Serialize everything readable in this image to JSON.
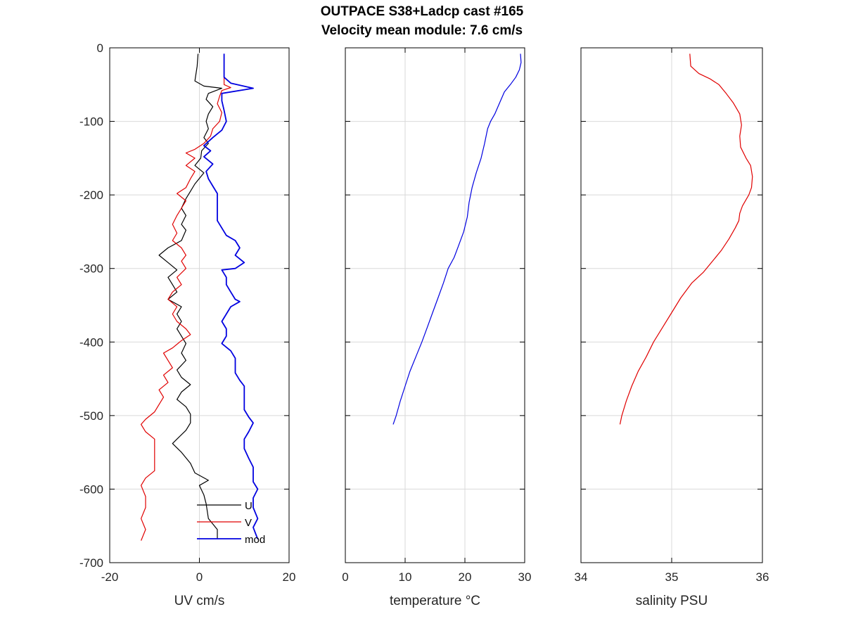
{
  "title": {
    "line1": "OUTPACE S38+Ladcp cast #165",
    "line2": "Velocity mean module:  7.6 cm/s"
  },
  "colors": {
    "u": "#000000",
    "v": "#e00000",
    "mod": "#0000e0",
    "temperature": "#0000e0",
    "salinity": "#e00000",
    "grid": "#d9d9d9"
  },
  "chart_data": [
    {
      "type": "line",
      "xlabel": "UV cm/s",
      "ylabel": "",
      "xlim": [
        -20,
        20
      ],
      "ylim": [
        -700,
        0
      ],
      "xticks": [
        -20,
        0,
        20
      ],
      "xtick_labels": [
        "-20",
        "0",
        "20"
      ],
      "yticks": [
        0,
        -100,
        -200,
        -300,
        -400,
        -500,
        -600,
        -700
      ],
      "ytick_labels": [
        "0",
        "-100",
        "-200",
        "-300",
        "-400",
        "-500",
        "-600",
        "-700"
      ],
      "grid": true,
      "legend": {
        "placement": "bottom-right",
        "entries": [
          "U",
          "V",
          "mod"
        ]
      },
      "series": [
        {
          "name": "U",
          "color_key": "u",
          "width": 1.2,
          "points": [
            [
              -0.3,
              -8
            ],
            [
              -0.5,
              -25
            ],
            [
              -1,
              -45
            ],
            [
              1,
              -52
            ],
            [
              5,
              -55
            ],
            [
              2,
              -62
            ],
            [
              1.5,
              -70
            ],
            [
              3,
              -80
            ],
            [
              2,
              -90
            ],
            [
              1.5,
              -100
            ],
            [
              2,
              -110
            ],
            [
              1,
              -122
            ],
            [
              2,
              -130
            ],
            [
              0.5,
              -140
            ],
            [
              0.3,
              -150
            ],
            [
              -1,
              -160
            ],
            [
              1,
              -170
            ],
            [
              -1,
              -185
            ],
            [
              -2,
              -195
            ],
            [
              -3,
              -205
            ],
            [
              -4,
              -218
            ],
            [
              -3,
              -228
            ],
            [
              -4,
              -240
            ],
            [
              -3,
              -248
            ],
            [
              -4,
              -262
            ],
            [
              -7,
              -272
            ],
            [
              -9,
              -282
            ],
            [
              -7,
              -292
            ],
            [
              -5,
              -302
            ],
            [
              -7,
              -312
            ],
            [
              -6,
              -322
            ],
            [
              -5,
              -332
            ],
            [
              -7,
              -342
            ],
            [
              -4,
              -352
            ],
            [
              -5,
              -362
            ],
            [
              -4,
              -372
            ],
            [
              -5,
              -382
            ],
            [
              -4,
              -392
            ],
            [
              -3,
              -402
            ],
            [
              -4,
              -415
            ],
            [
              -3,
              -425
            ],
            [
              -5,
              -438
            ],
            [
              -4,
              -448
            ],
            [
              -2,
              -458
            ],
            [
              -4,
              -468
            ],
            [
              -5,
              -478
            ],
            [
              -3,
              -488
            ],
            [
              -2,
              -498
            ],
            [
              -2,
              -510
            ],
            [
              -3,
              -520
            ],
            [
              -5,
              -532
            ],
            [
              -6,
              -538
            ],
            [
              -4,
              -550
            ],
            [
              -2,
              -565
            ],
            [
              -1,
              -578
            ],
            [
              2,
              -588
            ],
            [
              0,
              -595
            ],
            [
              1,
              -608
            ],
            [
              1.5,
              -620
            ],
            [
              2,
              -640
            ],
            [
              4,
              -655
            ],
            [
              4,
              -668
            ]
          ]
        },
        {
          "name": "V",
          "color_key": "v",
          "width": 1.2,
          "points": [
            [
              5.5,
              -35
            ],
            [
              5.5,
              -50
            ],
            [
              7,
              -54
            ],
            [
              5,
              -58
            ],
            [
              4.5,
              -66
            ],
            [
              4,
              -76
            ],
            [
              5,
              -88
            ],
            [
              4.5,
              -100
            ],
            [
              3,
              -110
            ],
            [
              2.5,
              -120
            ],
            [
              1,
              -130
            ],
            [
              -1,
              -138
            ],
            [
              -3,
              -143
            ],
            [
              -1,
              -150
            ],
            [
              -3,
              -160
            ],
            [
              -1,
              -168
            ],
            [
              -2,
              -178
            ],
            [
              -3,
              -190
            ],
            [
              -5,
              -198
            ],
            [
              -3,
              -208
            ],
            [
              -4,
              -218
            ],
            [
              -5,
              -228
            ],
            [
              -6,
              -240
            ],
            [
              -5,
              -252
            ],
            [
              -6,
              -262
            ],
            [
              -4,
              -272
            ],
            [
              -3,
              -282
            ],
            [
              -4,
              -290
            ],
            [
              -3,
              -300
            ],
            [
              -5,
              -312
            ],
            [
              -4,
              -322
            ],
            [
              -6,
              -332
            ],
            [
              -7,
              -342
            ],
            [
              -5,
              -352
            ],
            [
              -6,
              -362
            ],
            [
              -5,
              -372
            ],
            [
              -3,
              -382
            ],
            [
              -2,
              -390
            ],
            [
              -4,
              -398
            ],
            [
              -6,
              -408
            ],
            [
              -8,
              -415
            ],
            [
              -7,
              -425
            ],
            [
              -6,
              -435
            ],
            [
              -8,
              -445
            ],
            [
              -7,
              -455
            ],
            [
              -9,
              -465
            ],
            [
              -8,
              -475
            ],
            [
              -9,
              -485
            ],
            [
              -10,
              -495
            ],
            [
              -12,
              -505
            ],
            [
              -13,
              -512
            ],
            [
              -12,
              -522
            ],
            [
              -10,
              -532
            ],
            [
              -10,
              -545
            ],
            [
              -10,
              -560
            ],
            [
              -10,
              -575
            ],
            [
              -12,
              -585
            ],
            [
              -13,
              -595
            ],
            [
              -12,
              -610
            ],
            [
              -12,
              -625
            ],
            [
              -13,
              -640
            ],
            [
              -12,
              -655
            ],
            [
              -13,
              -670
            ]
          ]
        },
        {
          "name": "mod",
          "color_key": "mod",
          "width": 1.8,
          "points": [
            [
              5.5,
              -8
            ],
            [
              5.5,
              -40
            ],
            [
              7,
              -48
            ],
            [
              12,
              -55
            ],
            [
              5,
              -62
            ],
            [
              5,
              -72
            ],
            [
              5.5,
              -85
            ],
            [
              6,
              -100
            ],
            [
              5,
              -112
            ],
            [
              3,
              -122
            ],
            [
              1,
              -133
            ],
            [
              2.5,
              -140
            ],
            [
              1,
              -148
            ],
            [
              3,
              -158
            ],
            [
              1.5,
              -168
            ],
            [
              2,
              -178
            ],
            [
              3,
              -188
            ],
            [
              4,
              -198
            ],
            [
              4,
              -210
            ],
            [
              4,
              -222
            ],
            [
              4,
              -235
            ],
            [
              5,
              -245
            ],
            [
              6,
              -255
            ],
            [
              8,
              -262
            ],
            [
              9,
              -272
            ],
            [
              8,
              -282
            ],
            [
              10,
              -292
            ],
            [
              8,
              -300
            ],
            [
              5,
              -302
            ],
            [
              6,
              -312
            ],
            [
              6,
              -322
            ],
            [
              7,
              -332
            ],
            [
              8,
              -342
            ],
            [
              9,
              -345
            ],
            [
              7,
              -352
            ],
            [
              6,
              -362
            ],
            [
              5,
              -372
            ],
            [
              6,
              -382
            ],
            [
              6,
              -392
            ],
            [
              5,
              -402
            ],
            [
              7,
              -412
            ],
            [
              8,
              -422
            ],
            [
              8,
              -432
            ],
            [
              8,
              -442
            ],
            [
              9,
              -452
            ],
            [
              10,
              -460
            ],
            [
              10,
              -470
            ],
            [
              10,
              -480
            ],
            [
              10,
              -492
            ],
            [
              11,
              -502
            ],
            [
              12,
              -510
            ],
            [
              11,
              -522
            ],
            [
              10,
              -532
            ],
            [
              10,
              -545
            ],
            [
              11,
              -558
            ],
            [
              12,
              -570
            ],
            [
              12,
              -580
            ],
            [
              12,
              -590
            ],
            [
              13,
              -600
            ],
            [
              12,
              -612
            ],
            [
              12,
              -625
            ],
            [
              13,
              -640
            ],
            [
              12,
              -652
            ],
            [
              13,
              -668
            ]
          ]
        }
      ]
    },
    {
      "type": "line",
      "xlabel": "temperature °C",
      "ylabel": "",
      "xlim": [
        0,
        30
      ],
      "ylim": [
        -700,
        0
      ],
      "xticks": [
        0,
        10,
        20,
        30
      ],
      "xtick_labels": [
        "0",
        "10",
        "20",
        "30"
      ],
      "yticks": [
        0,
        -100,
        -200,
        -300,
        -400,
        -500,
        -600,
        -700
      ],
      "grid": true,
      "series": [
        {
          "color_key": "temperature",
          "width": 1.2,
          "points": [
            [
              29.3,
              -8
            ],
            [
              29.4,
              -20
            ],
            [
              29.1,
              -30
            ],
            [
              28.5,
              -40
            ],
            [
              27.6,
              -50
            ],
            [
              26.6,
              -60
            ],
            [
              25.8,
              -75
            ],
            [
              25,
              -90
            ],
            [
              24.3,
              -100
            ],
            [
              23.8,
              -110
            ],
            [
              23.3,
              -130
            ],
            [
              22.7,
              -150
            ],
            [
              21.9,
              -170
            ],
            [
              21.2,
              -190
            ],
            [
              20.7,
              -210
            ],
            [
              20.4,
              -230
            ],
            [
              19.8,
              -250
            ],
            [
              18.9,
              -270
            ],
            [
              18.2,
              -285
            ],
            [
              17.2,
              -300
            ],
            [
              16.4,
              -320
            ],
            [
              15.5,
              -340
            ],
            [
              14.6,
              -360
            ],
            [
              13.7,
              -380
            ],
            [
              12.8,
              -400
            ],
            [
              11.8,
              -420
            ],
            [
              10.8,
              -440
            ],
            [
              10.0,
              -460
            ],
            [
              9.2,
              -480
            ],
            [
              8.5,
              -500
            ],
            [
              8.0,
              -512
            ]
          ]
        }
      ]
    },
    {
      "type": "line",
      "xlabel": "salinity PSU",
      "ylabel": "",
      "xlim": [
        34,
        36
      ],
      "ylim": [
        -700,
        0
      ],
      "xticks": [
        34,
        35,
        36
      ],
      "xtick_labels": [
        "34",
        "35",
        "36"
      ],
      "yticks": [
        0,
        -100,
        -200,
        -300,
        -400,
        -500,
        -600,
        -700
      ],
      "grid": true,
      "series": [
        {
          "color_key": "salinity",
          "width": 1.2,
          "points": [
            [
              35.2,
              -8
            ],
            [
              35.21,
              -25
            ],
            [
              35.3,
              -35
            ],
            [
              35.42,
              -42
            ],
            [
              35.52,
              -50
            ],
            [
              35.6,
              -62
            ],
            [
              35.68,
              -75
            ],
            [
              35.75,
              -90
            ],
            [
              35.77,
              -105
            ],
            [
              35.75,
              -120
            ],
            [
              35.76,
              -135
            ],
            [
              35.82,
              -150
            ],
            [
              35.87,
              -160
            ],
            [
              35.89,
              -175
            ],
            [
              35.88,
              -190
            ],
            [
              35.85,
              -200
            ],
            [
              35.78,
              -215
            ],
            [
              35.75,
              -225
            ],
            [
              35.74,
              -235
            ],
            [
              35.7,
              -245
            ],
            [
              35.63,
              -260
            ],
            [
              35.55,
              -275
            ],
            [
              35.45,
              -290
            ],
            [
              35.35,
              -305
            ],
            [
              35.22,
              -320
            ],
            [
              35.1,
              -340
            ],
            [
              35.0,
              -360
            ],
            [
              34.9,
              -380
            ],
            [
              34.8,
              -400
            ],
            [
              34.72,
              -420
            ],
            [
              34.63,
              -440
            ],
            [
              34.56,
              -460
            ],
            [
              34.5,
              -480
            ],
            [
              34.45,
              -500
            ],
            [
              34.43,
              -512
            ]
          ]
        }
      ]
    }
  ]
}
